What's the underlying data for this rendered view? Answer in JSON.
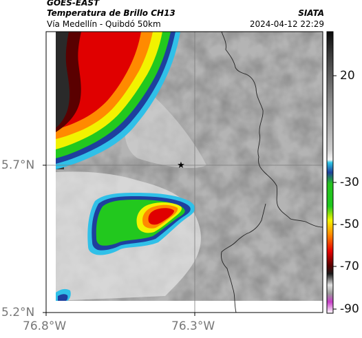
{
  "header": {
    "satellite": "GOES-EAST",
    "product": "Temperatura de Brillo CH13",
    "route": "Vía Medellín - Quibdó 50km",
    "agency": "SIATA",
    "datetime": "2024-04-12 22:29"
  },
  "map": {
    "lat_labels": [
      "5.7°N",
      "5.2°N"
    ],
    "lon_labels": [
      "76.8°W",
      "76.3°W"
    ],
    "marker": "star-marker"
  },
  "colorbar": {
    "tick_labels": [
      "20",
      "-30",
      "-50",
      "-70",
      "-90"
    ],
    "colors": {
      "dark": "#111111",
      "light_gray": "#dcdcdc",
      "cyan": "#2ec9e8",
      "blue": "#1f3f9c",
      "green": "#1ec81e",
      "yellow": "#f5f500",
      "orange": "#ff8c00",
      "red": "#e60000",
      "dark_red": "#5a0000",
      "magenta": "#c83cc8"
    }
  }
}
